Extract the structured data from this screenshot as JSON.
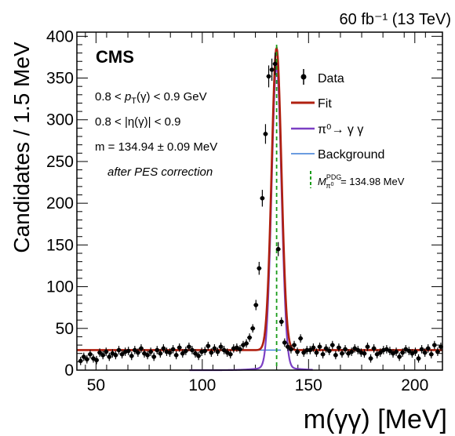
{
  "chart_data": {
    "type": "scatter",
    "experiment": "CMS",
    "luminosity_label": "60 fb⁻¹ (13 TeV)",
    "xlabel": "m(γγ) [MeV]",
    "ylabel": "Candidates / 1.5 MeV",
    "xlim": [
      41,
      213
    ],
    "ylim": [
      0,
      405
    ],
    "x_ticks": [
      50,
      100,
      150,
      200
    ],
    "y_ticks": [
      0,
      50,
      100,
      150,
      200,
      250,
      300,
      350,
      400
    ],
    "grid": false,
    "legend_position": "top-right",
    "annotations": [
      "0.8 < p_T(γ) < 0.9 GeV",
      "0.8 < |η(γ)| < 0.9",
      "m = 134.94 ± 0.09 MeV",
      "after PES correction"
    ],
    "legend": [
      {
        "label": "Data",
        "style": "marker"
      },
      {
        "label": "Fit",
        "style": "line",
        "color": "#b02010"
      },
      {
        "label": "π⁰→ γ γ",
        "style": "line",
        "color": "#7b3fc4"
      },
      {
        "label": "Background",
        "style": "line",
        "color": "#3a7bd5"
      },
      {
        "label": "M_π⁰^PDG = 134.98 MeV",
        "style": "dashed",
        "color": "#1a9c1a"
      }
    ],
    "pdg_mass": 134.98,
    "fit": {
      "mean": 134.94,
      "sigma": 2.3,
      "amplitude": 362,
      "background": 24
    },
    "series": [
      {
        "name": "Data",
        "error": 5,
        "x": [
          42.75,
          44.25,
          45.75,
          47.25,
          48.75,
          50.25,
          51.75,
          53.25,
          54.75,
          56.25,
          57.75,
          59.25,
          60.75,
          62.25,
          63.75,
          65.25,
          66.75,
          68.25,
          69.75,
          71.25,
          72.75,
          74.25,
          75.75,
          77.25,
          78.75,
          80.25,
          81.75,
          83.25,
          84.75,
          86.25,
          87.75,
          89.25,
          90.75,
          92.25,
          93.75,
          95.25,
          96.75,
          98.25,
          99.75,
          101.25,
          102.75,
          104.25,
          105.75,
          107.25,
          108.75,
          110.25,
          111.75,
          113.25,
          114.75,
          116.25,
          117.75,
          119.25,
          120.75,
          122.25,
          123.75,
          125.25,
          126.75,
          128.25,
          129.75,
          131.25,
          132.75,
          134.25,
          135.75,
          137.25,
          138.75,
          140.25,
          141.75,
          143.25,
          144.75,
          146.25,
          147.75,
          149.25,
          150.75,
          152.25,
          153.75,
          155.25,
          156.75,
          158.25,
          159.75,
          161.25,
          162.75,
          164.25,
          165.75,
          167.25,
          168.75,
          170.25,
          171.75,
          173.25,
          174.75,
          176.25,
          177.75,
          179.25,
          180.75,
          182.25,
          183.75,
          185.25,
          186.75,
          188.25,
          189.75,
          191.25,
          192.75,
          194.25,
          195.75,
          197.25,
          198.75,
          200.25,
          201.75,
          203.25,
          204.75,
          206.25,
          207.75,
          209.25,
          210.75,
          212.25
        ],
        "y": [
          11,
          16,
          13,
          19,
          14,
          12,
          21,
          18,
          22,
          16,
          20,
          18,
          24,
          19,
          22,
          23,
          17,
          24,
          21,
          26,
          20,
          18,
          22,
          16,
          24,
          20,
          26,
          22,
          21,
          25,
          18,
          27,
          20,
          23,
          28,
          24,
          20,
          17,
          22,
          23,
          29,
          21,
          26,
          22,
          28,
          24,
          21,
          19,
          26,
          27,
          25,
          30,
          32,
          39,
          50,
          78,
          122,
          206,
          283,
          352,
          360,
          367,
          145,
          58,
          33,
          28,
          25,
          30,
          22,
          38,
          21,
          24,
          24,
          27,
          21,
          28,
          19,
          26,
          23,
          30,
          18,
          27,
          20,
          25,
          20,
          22,
          26,
          24,
          21,
          20,
          28,
          14,
          26,
          19,
          21,
          24,
          25,
          23,
          20,
          22,
          16,
          21,
          25,
          23,
          20,
          22,
          14,
          25,
          21,
          26,
          19,
          30,
          22,
          28
        ]
      }
    ]
  }
}
